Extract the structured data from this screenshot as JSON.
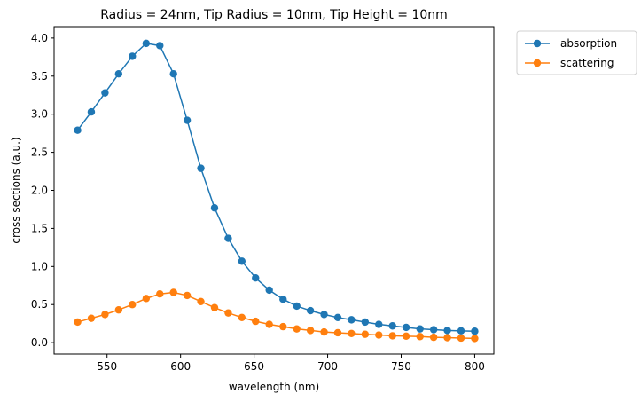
{
  "chart_data": {
    "type": "line",
    "title": "Radius = 24nm, Tip Radius = 10nm, Tip Height = 10nm",
    "xlabel": "wavelength (nm)",
    "ylabel": "cross sections (a.u.)",
    "xlim": [
      514,
      813
    ],
    "ylim": [
      -0.15,
      4.15
    ],
    "x_ticks": [
      550,
      600,
      650,
      700,
      750,
      800
    ],
    "x_tick_labels": [
      "550",
      "600",
      "650",
      "700",
      "750",
      "800"
    ],
    "y_ticks": [
      0.0,
      0.5,
      1.0,
      1.5,
      2.0,
      2.5,
      3.0,
      3.5,
      4.0
    ],
    "y_tick_labels": [
      "0.0",
      "0.5",
      "1.0",
      "1.5",
      "2.0",
      "2.5",
      "3.0",
      "3.5",
      "4.0"
    ],
    "grid": false,
    "legend_position": "outside-top-right",
    "x": [
      530,
      539.3,
      548.6,
      557.9,
      567.2,
      576.6,
      585.9,
      595.2,
      604.5,
      613.8,
      623.1,
      632.4,
      641.7,
      651.0,
      660.3,
      669.7,
      679.0,
      688.3,
      697.6,
      706.9,
      716.2,
      725.5,
      734.8,
      744.1,
      753.4,
      762.8,
      772.1,
      781.4,
      790.7,
      800
    ],
    "series": [
      {
        "name": "absorption",
        "color": "#1f77b4",
        "values": [
          2.79,
          3.03,
          3.28,
          3.53,
          3.76,
          3.93,
          3.9,
          3.53,
          2.92,
          2.29,
          1.77,
          1.37,
          1.07,
          0.85,
          0.69,
          0.57,
          0.48,
          0.42,
          0.37,
          0.33,
          0.3,
          0.27,
          0.24,
          0.22,
          0.2,
          0.18,
          0.17,
          0.16,
          0.155,
          0.15
        ]
      },
      {
        "name": "scattering",
        "color": "#ff7f0e",
        "values": [
          0.27,
          0.32,
          0.37,
          0.43,
          0.5,
          0.58,
          0.64,
          0.66,
          0.62,
          0.54,
          0.46,
          0.39,
          0.33,
          0.28,
          0.24,
          0.21,
          0.18,
          0.16,
          0.14,
          0.13,
          0.12,
          0.11,
          0.1,
          0.09,
          0.085,
          0.08,
          0.07,
          0.065,
          0.06,
          0.055
        ]
      }
    ]
  }
}
